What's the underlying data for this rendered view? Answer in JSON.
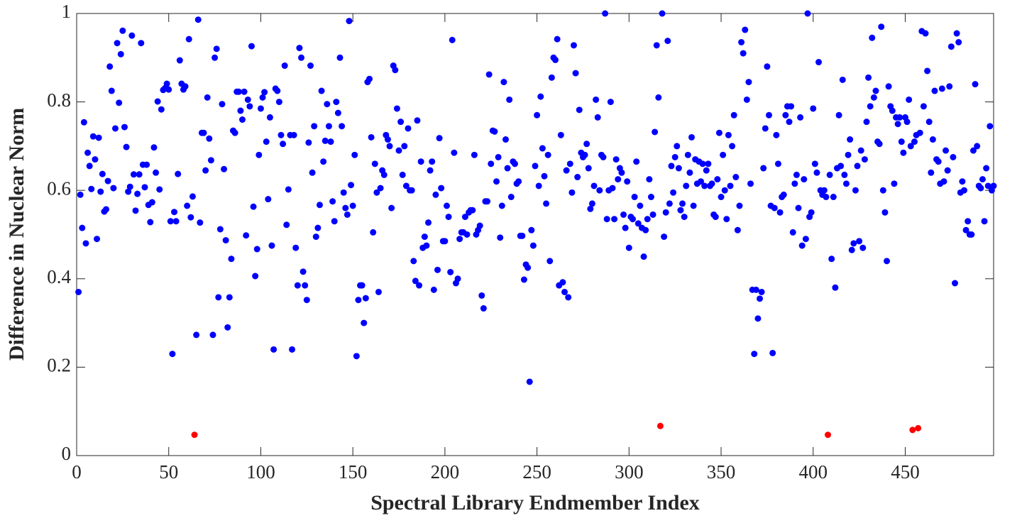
{
  "chart_data": {
    "type": "scatter",
    "xlabel": "Spectral Library Endmember Index",
    "ylabel": "Difference in Nuclear Norm",
    "xlim": [
      0,
      498
    ],
    "ylim": [
      0,
      1
    ],
    "xticks": [
      0,
      50,
      100,
      150,
      200,
      250,
      300,
      350,
      400,
      450
    ],
    "yticks": [
      0,
      0.2,
      0.4,
      0.6,
      0.8,
      1
    ],
    "series": [
      {
        "color": "#0000ff",
        "x": [
          1,
          2,
          3,
          4,
          5,
          6,
          7,
          8,
          9,
          10,
          11,
          12,
          13,
          14,
          15,
          16,
          17,
          18,
          19,
          20,
          21,
          22,
          23,
          24,
          25,
          26,
          27,
          28,
          29,
          30,
          31,
          32,
          33,
          34,
          35,
          36,
          37,
          38,
          39,
          40,
          41,
          42,
          43,
          44,
          45,
          46,
          47,
          48,
          49,
          50,
          51,
          52,
          53,
          54,
          55,
          56,
          57,
          58,
          59,
          60,
          61,
          62,
          63,
          65,
          66,
          67,
          68,
          69,
          70,
          71,
          72,
          73,
          74,
          75,
          76,
          77,
          78,
          79,
          80,
          81,
          82,
          83,
          84,
          85,
          86,
          87,
          88,
          89,
          90,
          91,
          92,
          93,
          94,
          95,
          96,
          97,
          98,
          99,
          100,
          101,
          102,
          103,
          104,
          105,
          106,
          107,
          108,
          109,
          110,
          111,
          112,
          113,
          114,
          115,
          116,
          117,
          118,
          119,
          120,
          121,
          122,
          123,
          124,
          125,
          126,
          127,
          128,
          129,
          130,
          131,
          132,
          133,
          134,
          135,
          136,
          137,
          138,
          139,
          140,
          141,
          142,
          143,
          144,
          145,
          146,
          147,
          148,
          149,
          150,
          151,
          152,
          153,
          154,
          155,
          156,
          157,
          158,
          159,
          160,
          161,
          162,
          163,
          164,
          165,
          166,
          167,
          168,
          169,
          170,
          171,
          172,
          173,
          174,
          175,
          176,
          177,
          178,
          179,
          180,
          181,
          182,
          183,
          184,
          185,
          186,
          187,
          188,
          189,
          190,
          191,
          192,
          193,
          194,
          195,
          196,
          197,
          198,
          199,
          200,
          201,
          202,
          203,
          204,
          205,
          206,
          207,
          208,
          209,
          210,
          211,
          212,
          213,
          214,
          215,
          216,
          217,
          218,
          219,
          220,
          221,
          222,
          223,
          224,
          225,
          226,
          227,
          228,
          229,
          230,
          231,
          232,
          233,
          234,
          235,
          236,
          237,
          238,
          239,
          240,
          241,
          242,
          243,
          244,
          245,
          246,
          247,
          248,
          249,
          250,
          251,
          252,
          253,
          254,
          255,
          256,
          257,
          258,
          259,
          260,
          261,
          262,
          263,
          264,
          265,
          266,
          267,
          268,
          269,
          270,
          271,
          272,
          273,
          274,
          275,
          276,
          277,
          278,
          279,
          280,
          281,
          282,
          283,
          284,
          285,
          286,
          287,
          288,
          289,
          290,
          291,
          292,
          293,
          294,
          295,
          296,
          297,
          298,
          299,
          300,
          301,
          302,
          303,
          304,
          305,
          306,
          307,
          308,
          309,
          310,
          311,
          312,
          313,
          314,
          315,
          316,
          318,
          319,
          320,
          321,
          322,
          323,
          324,
          325,
          326,
          327,
          328,
          329,
          330,
          331,
          332,
          333,
          334,
          335,
          336,
          337,
          338,
          339,
          340,
          341,
          342,
          343,
          344,
          345,
          346,
          347,
          348,
          349,
          350,
          351,
          352,
          353,
          354,
          355,
          356,
          357,
          358,
          359,
          360,
          361,
          362,
          363,
          364,
          365,
          366,
          367,
          368,
          369,
          370,
          371,
          372,
          373,
          374,
          375,
          376,
          377,
          378,
          379,
          380,
          381,
          382,
          383,
          384,
          385,
          386,
          387,
          388,
          389,
          390,
          391,
          392,
          393,
          394,
          395,
          396,
          397,
          398,
          399,
          400,
          401,
          402,
          403,
          404,
          405,
          406,
          407,
          409,
          410,
          411,
          412,
          413,
          414,
          415,
          416,
          417,
          418,
          419,
          420,
          421,
          422,
          423,
          424,
          425,
          426,
          427,
          428,
          429,
          430,
          431,
          432,
          433,
          434,
          435,
          436,
          437,
          438,
          439,
          440,
          441,
          442,
          443,
          444,
          445,
          446,
          447,
          448,
          449,
          450,
          451,
          452,
          453,
          455,
          456,
          458,
          459,
          460,
          461,
          462,
          463,
          464,
          465,
          466,
          467,
          468,
          469,
          470,
          471,
          472,
          473,
          474,
          475,
          476,
          477,
          478,
          479,
          480,
          481,
          482,
          483,
          484,
          485,
          486,
          487,
          488,
          489,
          490,
          491,
          492,
          493,
          494,
          495,
          496,
          497,
          498
        ],
        "values": [
          0.37,
          0.59,
          0.515,
          0.754,
          0.48,
          0.685,
          0.655,
          0.603,
          0.722,
          0.67,
          0.49,
          0.719,
          0.597,
          0.637,
          0.552,
          0.557,
          0.621,
          0.88,
          0.825,
          0.605,
          0.74,
          0.933,
          0.798,
          0.908,
          0.961,
          0.743,
          0.698,
          0.597,
          0.608,
          0.95,
          0.636,
          0.554,
          0.592,
          0.636,
          0.933,
          0.658,
          0.607,
          0.658,
          0.567,
          0.528,
          0.573,
          0.697,
          0.64,
          0.801,
          0.602,
          0.783,
          0.827,
          0.831,
          0.841,
          0.828,
          0.53,
          0.23,
          0.551,
          0.53,
          0.637,
          0.894,
          0.841,
          0.828,
          0.835,
          0.565,
          0.942,
          0.539,
          0.586,
          0.273,
          0.986,
          0.527,
          0.73,
          0.73,
          0.645,
          0.81,
          0.717,
          0.668,
          0.273,
          0.9,
          0.92,
          0.358,
          0.512,
          0.795,
          0.648,
          0.487,
          0.29,
          0.358,
          0.445,
          0.735,
          0.73,
          0.823,
          0.823,
          0.78,
          0.76,
          0.823,
          0.498,
          0.805,
          0.79,
          0.926,
          0.563,
          0.406,
          0.467,
          0.68,
          0.785,
          0.81,
          0.822,
          0.71,
          0.58,
          0.765,
          0.475,
          0.24,
          0.83,
          0.825,
          0.8,
          0.725,
          0.705,
          0.882,
          0.522,
          0.602,
          0.725,
          0.24,
          0.725,
          0.47,
          0.385,
          0.922,
          0.9,
          0.416,
          0.385,
          0.352,
          0.708,
          0.882,
          0.64,
          0.745,
          0.495,
          0.515,
          0.567,
          0.825,
          0.665,
          0.712,
          0.795,
          0.745,
          0.71,
          0.575,
          0.53,
          0.8,
          0.775,
          0.9,
          0.745,
          0.595,
          0.56,
          0.545,
          0.983,
          0.612,
          0.565,
          0.68,
          0.225,
          0.352,
          0.385,
          0.385,
          0.3,
          0.356,
          0.845,
          0.852,
          0.72,
          0.505,
          0.66,
          0.595,
          0.37,
          0.605,
          0.645,
          0.635,
          0.725,
          0.715,
          0.7,
          0.56,
          0.882,
          0.872,
          0.785,
          0.69,
          0.755,
          0.635,
          0.7,
          0.61,
          0.74,
          0.6,
          0.6,
          0.44,
          0.395,
          0.758,
          0.385,
          0.665,
          0.47,
          0.495,
          0.475,
          0.527,
          0.645,
          0.665,
          0.375,
          0.59,
          0.42,
          0.718,
          0.605,
          0.485,
          0.485,
          0.565,
          0.54,
          0.415,
          0.94,
          0.685,
          0.39,
          0.4,
          0.49,
          0.505,
          0.505,
          0.54,
          0.5,
          0.55,
          0.555,
          0.555,
          0.68,
          0.5,
          0.51,
          0.52,
          0.362,
          0.333,
          0.575,
          0.575,
          0.862,
          0.66,
          0.735,
          0.733,
          0.62,
          0.675,
          0.493,
          0.565,
          0.845,
          0.715,
          0.65,
          0.805,
          0.585,
          0.665,
          0.66,
          0.615,
          0.62,
          0.497,
          0.497,
          0.398,
          0.432,
          0.425,
          0.167,
          0.51,
          0.475,
          0.655,
          0.77,
          0.61,
          0.812,
          0.695,
          0.632,
          0.57,
          0.68,
          0.44,
          0.855,
          0.9,
          0.895,
          0.942,
          0.385,
          0.725,
          0.392,
          0.37,
          0.645,
          0.358,
          0.66,
          0.595,
          0.928,
          0.865,
          0.63,
          0.782,
          0.685,
          0.675,
          0.68,
          0.705,
          0.65,
          0.558,
          0.57,
          0.61,
          0.805,
          0.765,
          0.6,
          0.68,
          0.675,
          1,
          0.535,
          0.6,
          0.8,
          0.605,
          0.535,
          0.67,
          0.625,
          0.65,
          0.64,
          0.545,
          0.515,
          0.62,
          0.47,
          0.54,
          0.535,
          0.585,
          0.665,
          0.525,
          0.565,
          0.515,
          0.45,
          0.51,
          0.535,
          0.625,
          0.585,
          0.545,
          0.732,
          0.928,
          0.81,
          1,
          0.495,
          0.55,
          0.938,
          0.57,
          0.655,
          0.595,
          0.675,
          0.7,
          0.65,
          0.555,
          0.57,
          0.54,
          0.61,
          0.68,
          0.64,
          0.72,
          0.565,
          0.67,
          0.615,
          0.665,
          0.62,
          0.66,
          0.61,
          0.645,
          0.66,
          0.61,
          0.615,
          0.545,
          0.54,
          0.625,
          0.73,
          0.585,
          0.68,
          0.6,
          0.535,
          0.725,
          0.61,
          0.7,
          0.77,
          0.63,
          0.51,
          0.565,
          0.935,
          0.91,
          0.963,
          0.805,
          0.845,
          0.615,
          0.375,
          0.23,
          0.375,
          0.31,
          0.355,
          0.37,
          0.65,
          0.74,
          0.88,
          0.77,
          0.565,
          0.232,
          0.56,
          0.725,
          0.66,
          0.55,
          0.585,
          0.59,
          0.77,
          0.79,
          0.755,
          0.79,
          0.505,
          0.615,
          0.635,
          0.56,
          0.765,
          0.475,
          0.625,
          0.49,
          1,
          0.54,
          0.55,
          0.785,
          0.66,
          0.64,
          0.89,
          0.6,
          0.59,
          0.6,
          0.585,
          0.635,
          0.445,
          0.585,
          0.38,
          0.65,
          0.77,
          0.655,
          0.85,
          0.635,
          0.615,
          0.68,
          0.715,
          0.465,
          0.48,
          0.6,
          0.655,
          0.485,
          0.69,
          0.47,
          0.67,
          0.755,
          0.855,
          0.79,
          0.945,
          0.81,
          0.825,
          0.71,
          0.705,
          0.97,
          0.6,
          0.55,
          0.44,
          0.835,
          0.79,
          0.78,
          0.615,
          0.765,
          0.75,
          0.765,
          0.71,
          0.685,
          0.765,
          0.755,
          0.805,
          0.7,
          0.71,
          0.725,
          0.73,
          0.96,
          0.79,
          0.955,
          0.87,
          0.755,
          0.64,
          0.715,
          0.825,
          0.67,
          0.665,
          0.615,
          0.83,
          0.62,
          0.69,
          0.645,
          0.835,
          0.925,
          0.675,
          0.39,
          0.955,
          0.935,
          0.595,
          0.62,
          0.6,
          0.51,
          0.53,
          0.5,
          0.5,
          0.69,
          0.84,
          0.7,
          0.61,
          0.605,
          0.625,
          0.53,
          0.65,
          0.61,
          0.745,
          0.6,
          0.61
        ]
      },
      {
        "color": "#ff0000",
        "x": [
          64,
          317,
          408,
          454,
          457
        ],
        "values": [
          0.047,
          0.067,
          0.047,
          0.058,
          0.062
        ]
      }
    ]
  }
}
